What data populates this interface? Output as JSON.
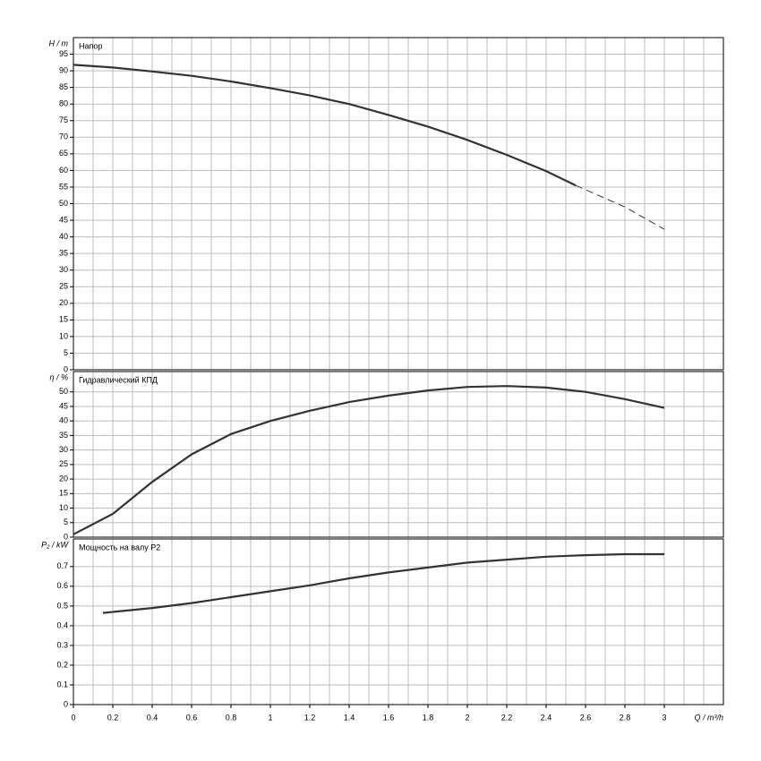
{
  "chart_data": [
    {
      "type": "line",
      "ylabel": "H / m",
      "label": "Напор",
      "xlim": [
        0,
        3.3
      ],
      "ylim": [
        0,
        100
      ],
      "yticks": [
        0,
        5,
        10,
        15,
        20,
        25,
        30,
        35,
        40,
        45,
        50,
        55,
        60,
        65,
        70,
        75,
        80,
        85,
        90,
        95
      ],
      "xgrid": [
        0.1,
        0.2,
        0.3,
        0.4,
        0.5,
        0.6,
        0.7,
        0.8,
        0.9,
        1,
        1.1,
        1.2,
        1.3,
        1.4,
        1.5,
        1.6,
        1.7,
        1.8,
        1.9,
        2,
        2.1,
        2.2,
        2.3,
        2.4,
        2.5,
        2.6,
        2.7,
        2.8,
        2.9,
        3,
        3.1,
        3.2
      ],
      "grid": true,
      "series": [
        {
          "color": "#333333",
          "dashed": false,
          "x": [
            0,
            0.2,
            0.4,
            0.6,
            0.8,
            1.0,
            1.2,
            1.4,
            1.6,
            1.8,
            2.0,
            2.2,
            2.4,
            2.55
          ],
          "values": [
            91.8,
            91,
            89.8,
            88.5,
            86.8,
            84.8,
            82.6,
            80,
            76.7,
            73.2,
            69.2,
            64.7,
            59.8,
            55.5
          ]
        },
        {
          "color": "#333333",
          "dashed": true,
          "x": [
            2.55,
            2.8,
            3.0
          ],
          "values": [
            55.5,
            49,
            42.3
          ]
        }
      ]
    },
    {
      "type": "line",
      "ylabel": "η / %",
      "label": "Гидравлический КПД",
      "xlim": [
        0,
        3.3
      ],
      "ylim": [
        0,
        57
      ],
      "yticks": [
        0,
        5,
        10,
        15,
        20,
        25,
        30,
        35,
        40,
        45,
        50
      ],
      "xgrid": [
        0.1,
        0.2,
        0.3,
        0.4,
        0.5,
        0.6,
        0.7,
        0.8,
        0.9,
        1,
        1.1,
        1.2,
        1.3,
        1.4,
        1.5,
        1.6,
        1.7,
        1.8,
        1.9,
        2,
        2.1,
        2.2,
        2.3,
        2.4,
        2.5,
        2.6,
        2.7,
        2.8,
        2.9,
        3,
        3.1,
        3.2
      ],
      "grid": true,
      "series": [
        {
          "color": "#333333",
          "dashed": false,
          "x": [
            0,
            0.2,
            0.4,
            0.6,
            0.8,
            1.0,
            1.2,
            1.4,
            1.6,
            1.8,
            2.0,
            2.2,
            2.4,
            2.6,
            2.8,
            3.0
          ],
          "values": [
            1,
            8,
            19,
            28.5,
            35.5,
            40,
            43.5,
            46.5,
            48.7,
            50.5,
            51.7,
            52,
            51.5,
            50,
            47.5,
            44.5
          ]
        }
      ]
    },
    {
      "type": "line",
      "ylabel": "P₂ / kW",
      "label": "Мощность на валу P2",
      "xlabel": "Q / m³/h",
      "xlim": [
        0,
        3.3
      ],
      "ylim": [
        0,
        0.84
      ],
      "yticks": [
        0,
        0.1,
        0.2,
        0.3,
        0.4,
        0.5,
        0.6,
        0.7
      ],
      "xticks": [
        0,
        0.2,
        0.4,
        0.6,
        0.8,
        1,
        1.2,
        1.4,
        1.6,
        1.8,
        2,
        2.2,
        2.4,
        2.6,
        2.8,
        3
      ],
      "xgrid": [
        0.1,
        0.2,
        0.3,
        0.4,
        0.5,
        0.6,
        0.7,
        0.8,
        0.9,
        1,
        1.1,
        1.2,
        1.3,
        1.4,
        1.5,
        1.6,
        1.7,
        1.8,
        1.9,
        2,
        2.1,
        2.2,
        2.3,
        2.4,
        2.5,
        2.6,
        2.7,
        2.8,
        2.9,
        3,
        3.1,
        3.2
      ],
      "grid": true,
      "series": [
        {
          "color": "#333333",
          "dashed": false,
          "x": [
            0.15,
            0.4,
            0.6,
            0.8,
            1.0,
            1.2,
            1.4,
            1.6,
            1.8,
            2.0,
            2.2,
            2.4,
            2.6,
            2.8,
            3.0
          ],
          "values": [
            0.465,
            0.49,
            0.515,
            0.545,
            0.575,
            0.605,
            0.64,
            0.67,
            0.695,
            0.72,
            0.735,
            0.75,
            0.758,
            0.763,
            0.763
          ]
        }
      ]
    }
  ]
}
